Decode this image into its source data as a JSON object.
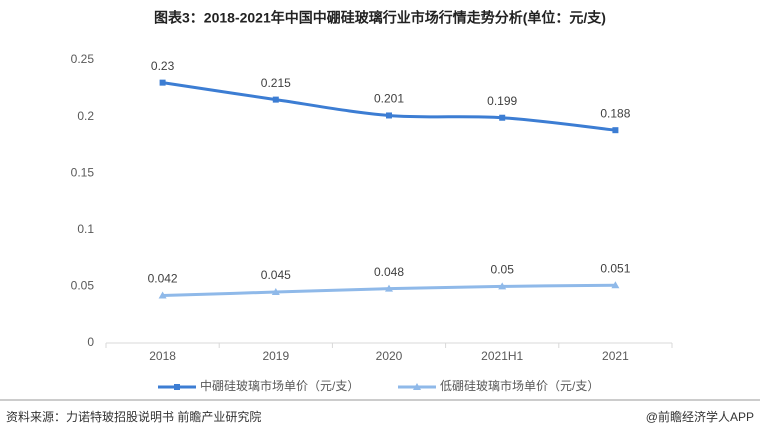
{
  "chart_data": {
    "type": "line",
    "title": "图表3：2018-2021年中国中硼硅玻璃行业市场行情走势分析(单位：元/支)",
    "categories": [
      "2018",
      "2019",
      "2020",
      "2021H1",
      "2021"
    ],
    "series": [
      {
        "name": "中硼硅玻璃市场单价（元/支）",
        "color": "#3c7dd3",
        "marker": "square",
        "values": [
          0.23,
          0.215,
          0.201,
          0.199,
          0.188
        ]
      },
      {
        "name": "低硼硅玻璃市场单价（元/支）",
        "color": "#8fb9e9",
        "marker": "triangle",
        "values": [
          0.042,
          0.045,
          0.048,
          0.05,
          0.051
        ]
      }
    ],
    "ylim": [
      0,
      0.25
    ],
    "yticks": [
      0,
      0.05,
      0.1,
      0.15,
      0.2,
      0.25
    ],
    "grid": false,
    "legend": "bottom"
  },
  "footer": {
    "source": "资料来源：力诺特玻招股说明书 前瞻产业研究院",
    "brand": "@前瞻经济学人APP"
  }
}
